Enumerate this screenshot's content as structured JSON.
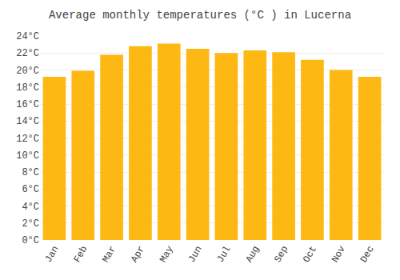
{
  "chart_data": {
    "type": "bar",
    "title": "Average monthly temperatures (°C ) in Lucerna",
    "categories": [
      "Jan",
      "Feb",
      "Mar",
      "Apr",
      "May",
      "Jun",
      "Jul",
      "Aug",
      "Sep",
      "Oct",
      "Nov",
      "Dec"
    ],
    "values": [
      19.2,
      19.9,
      21.8,
      22.8,
      23.1,
      22.5,
      22.0,
      22.3,
      22.1,
      21.2,
      20.0,
      19.2
    ],
    "color": "#FDB813",
    "ylim": [
      0,
      24
    ],
    "yticks": [
      {
        "value": 0,
        "label": "0°C"
      },
      {
        "value": 2,
        "label": "2°C"
      },
      {
        "value": 4,
        "label": "4°C"
      },
      {
        "value": 6,
        "label": "6°C"
      },
      {
        "value": 8,
        "label": "8°C"
      },
      {
        "value": 10,
        "label": "10°C"
      },
      {
        "value": 12,
        "label": "12°C"
      },
      {
        "value": 14,
        "label": "14°C"
      },
      {
        "value": 16,
        "label": "16°C"
      },
      {
        "value": 18,
        "label": "18°C"
      },
      {
        "value": 20,
        "label": "20°C"
      },
      {
        "value": 22,
        "label": "22°C"
      },
      {
        "value": 24,
        "label": "24°C"
      }
    ],
    "grid": true
  }
}
